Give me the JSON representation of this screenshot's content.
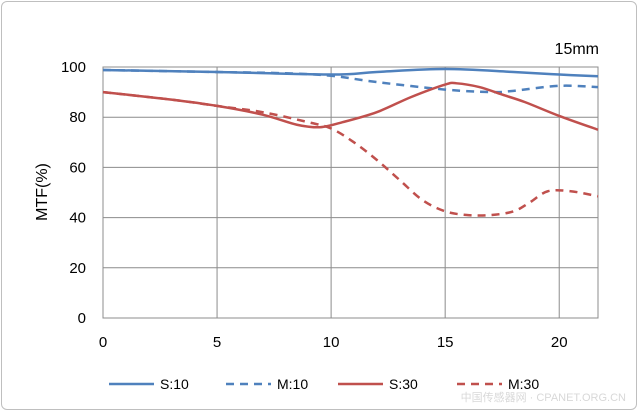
{
  "chart_data": {
    "type": "line",
    "corner_label": "15mm",
    "xlabel": "",
    "ylabel": "MTF(%)",
    "xlim": [
      0,
      21.7
    ],
    "ylim": [
      0,
      100
    ],
    "xticks": [
      0,
      5,
      10,
      15,
      20
    ],
    "yticks": [
      0,
      20,
      40,
      60,
      80,
      100
    ],
    "grid": "vertical and horizontal",
    "legend_position": "bottom",
    "series": [
      {
        "name": "S:10",
        "color": "#4f81bd",
        "dash": "solid",
        "points": [
          [
            0,
            98.8
          ],
          [
            5,
            98
          ],
          [
            10,
            97
          ],
          [
            12,
            98
          ],
          [
            15,
            99.2
          ],
          [
            18,
            98
          ],
          [
            20,
            97
          ],
          [
            21.7,
            96.3
          ]
        ]
      },
      {
        "name": "M:10",
        "color": "#4f81bd",
        "dash": "dashed",
        "points": [
          [
            0,
            98.8
          ],
          [
            5,
            98
          ],
          [
            8,
            97.5
          ],
          [
            10,
            96.5
          ],
          [
            12,
            94
          ],
          [
            15,
            91
          ],
          [
            17,
            90
          ],
          [
            18,
            90.5
          ],
          [
            20,
            92.5
          ],
          [
            21.7,
            92
          ]
        ]
      },
      {
        "name": "S:30",
        "color": "#c0504d",
        "dash": "solid",
        "points": [
          [
            0,
            90
          ],
          [
            3,
            87
          ],
          [
            5,
            84.5
          ],
          [
            7,
            81
          ],
          [
            8.5,
            77
          ],
          [
            9.5,
            76
          ],
          [
            10.5,
            78
          ],
          [
            12,
            82
          ],
          [
            13.5,
            88
          ],
          [
            15,
            93
          ],
          [
            15.5,
            93.5
          ],
          [
            16.5,
            92
          ],
          [
            17.5,
            89
          ],
          [
            18.5,
            86
          ],
          [
            20,
            80.5
          ],
          [
            21.7,
            75
          ]
        ]
      },
      {
        "name": "M:30",
        "color": "#c0504d",
        "dash": "dashed",
        "points": [
          [
            0,
            90
          ],
          [
            3,
            87
          ],
          [
            5,
            84.5
          ],
          [
            7,
            82
          ],
          [
            9,
            78
          ],
          [
            10,
            75.5
          ],
          [
            11,
            70
          ],
          [
            12,
            63
          ],
          [
            13,
            55
          ],
          [
            14,
            47
          ],
          [
            15,
            42.5
          ],
          [
            16,
            41
          ],
          [
            17,
            41
          ],
          [
            18,
            42.5
          ],
          [
            18.7,
            46
          ],
          [
            19.5,
            50.5
          ],
          [
            20.5,
            50.5
          ],
          [
            21.7,
            48.5
          ]
        ]
      }
    ]
  },
  "watermark": "中国传感器网 · CPANET.ORG.CN"
}
